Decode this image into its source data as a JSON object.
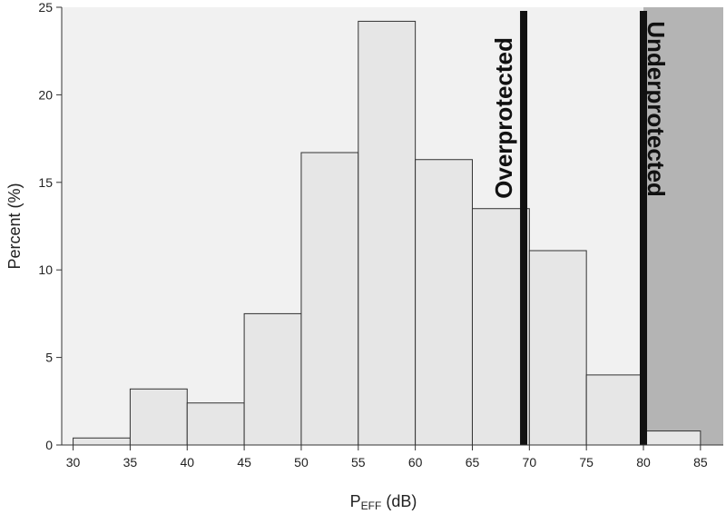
{
  "chart_data": {
    "type": "bar",
    "title": "",
    "xlabel": "P",
    "xlabel_sub": "EFF",
    "xlabel_unit": " (dB)",
    "ylabel": "Percent (%)",
    "xlim": [
      29,
      87
    ],
    "ylim": [
      0,
      25
    ],
    "x_ticks": [
      30,
      35,
      40,
      45,
      50,
      55,
      60,
      65,
      70,
      75,
      80,
      85
    ],
    "y_ticks": [
      0,
      5,
      10,
      15,
      20,
      25
    ],
    "bin_width": 5,
    "bins": [
      {
        "start": 30,
        "end": 35,
        "value": 0.4
      },
      {
        "start": 35,
        "end": 40,
        "value": 3.2
      },
      {
        "start": 40,
        "end": 45,
        "value": 2.4
      },
      {
        "start": 45,
        "end": 50,
        "value": 7.5
      },
      {
        "start": 50,
        "end": 55,
        "value": 16.7
      },
      {
        "start": 55,
        "end": 60,
        "value": 24.2
      },
      {
        "start": 60,
        "end": 65,
        "value": 16.3
      },
      {
        "start": 65,
        "end": 70,
        "value": 13.5
      },
      {
        "start": 70,
        "end": 75,
        "value": 11.1
      },
      {
        "start": 75,
        "end": 80,
        "value": 4.0
      },
      {
        "start": 80,
        "end": 85,
        "value": 0.8
      }
    ],
    "thresholds": [
      {
        "x": 69.5,
        "label": "Overprotected"
      },
      {
        "x": 80,
        "label": "Underprotected"
      }
    ],
    "shaded_region": {
      "from": 80,
      "to": 87
    },
    "grid": false,
    "legend": "none",
    "colors": {
      "bar_fill": "#e6e6e6",
      "bar_stroke": "#333333",
      "plot_bg": "#f1f1f1",
      "shaded_region": "#b4b4b4",
      "threshold_line": "#111111"
    }
  }
}
